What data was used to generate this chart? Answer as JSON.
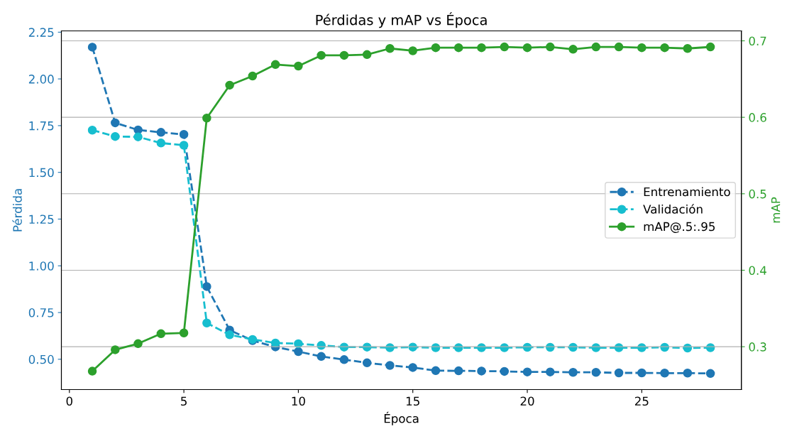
{
  "chart_data": {
    "type": "line",
    "title": "Pérdidas y mAP vs Época",
    "xlabel": "Época",
    "ylabel": "Pérdida",
    "y2label": "mAP",
    "x": [
      1,
      2,
      3,
      4,
      5,
      6,
      7,
      8,
      9,
      10,
      11,
      12,
      13,
      14,
      15,
      16,
      17,
      18,
      19,
      20,
      21,
      22,
      23,
      24,
      25,
      26,
      27,
      28
    ],
    "series": [
      {
        "name": "Entrenamiento",
        "color": "#1f77b4",
        "line_style": "dashed",
        "values": [
          2.17,
          1.765,
          1.727,
          1.714,
          1.703,
          0.889,
          0.656,
          0.6,
          0.566,
          0.541,
          0.515,
          0.498,
          0.481,
          0.467,
          0.456,
          0.439,
          0.438,
          0.437,
          0.435,
          0.432,
          0.432,
          0.43,
          0.43,
          0.427,
          0.427,
          0.426,
          0.426,
          0.424
        ]
      },
      {
        "name": "Validación",
        "color": "#17becf",
        "line_style": "dashed",
        "values": [
          1.726,
          1.692,
          1.69,
          1.657,
          1.645,
          0.694,
          0.631,
          0.606,
          0.587,
          0.583,
          0.574,
          0.565,
          0.565,
          0.562,
          0.565,
          0.562,
          0.562,
          0.562,
          0.562,
          0.564,
          0.564,
          0.564,
          0.562,
          0.562,
          0.562,
          0.564,
          0.56,
          0.562
        ]
      },
      {
        "name": "mAP@.5:.95",
        "color": "#2ca02c",
        "line_style": "solid",
        "axis": "y2",
        "values": [
          0.268,
          0.296,
          0.304,
          0.317,
          0.318,
          0.599,
          0.642,
          0.654,
          0.669,
          0.667,
          0.681,
          0.681,
          0.682,
          0.69,
          0.687,
          0.691,
          0.691,
          0.691,
          0.692,
          0.691,
          0.692,
          0.689,
          0.692,
          0.692,
          0.691,
          0.691,
          0.69,
          0.692
        ]
      }
    ],
    "xlim": [
      -0.35,
      29.35
    ],
    "xticks": [
      0,
      5,
      10,
      15,
      20,
      25
    ],
    "ylim": [
      0.338,
      2.257
    ],
    "yticks": [
      {
        "value": 0.5,
        "label": "0.50"
      },
      {
        "value": 0.75,
        "label": "0.75"
      },
      {
        "value": 1.0,
        "label": "1.00"
      },
      {
        "value": 1.25,
        "label": "1.25"
      },
      {
        "value": 1.5,
        "label": "1.50"
      },
      {
        "value": 1.75,
        "label": "1.75"
      },
      {
        "value": 2.0,
        "label": "2.00"
      },
      {
        "value": 2.25,
        "label": "2.25"
      }
    ],
    "y2lim": [
      0.244,
      0.713
    ],
    "y2ticks": [
      0.3,
      0.4,
      0.5,
      0.6,
      0.7
    ],
    "grid": "y2",
    "legend": "center right",
    "marker": "circle"
  }
}
